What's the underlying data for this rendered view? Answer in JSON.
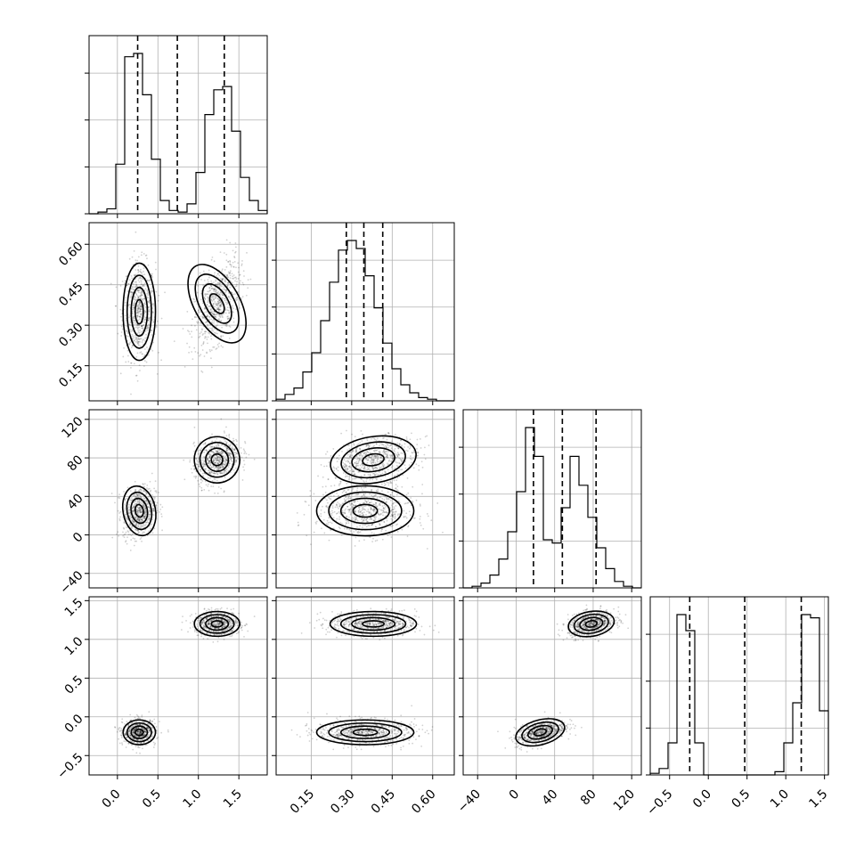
{
  "chart_data": {
    "type": "corner",
    "grid": true,
    "parameters": [
      {
        "range": [
          -0.35,
          1.85
        ],
        "ticks": [
          "0.0",
          "0.5",
          "1.0",
          "1.5"
        ],
        "tick_values": [
          0.0,
          0.5,
          1.0,
          1.5
        ],
        "quantiles": [
          0.25,
          0.74,
          1.32
        ]
      },
      {
        "range": [
          0.02,
          0.68
        ],
        "ticks": [
          "0.15",
          "0.30",
          "0.45",
          "0.60"
        ],
        "tick_values": [
          0.15,
          0.3,
          0.45,
          0.6
        ],
        "quantiles": [
          0.28,
          0.345,
          0.415
        ]
      },
      {
        "range": [
          -55,
          130
        ],
        "ticks": [
          "−40",
          "0",
          "40",
          "80",
          "120"
        ],
        "tick_values": [
          -40,
          0,
          40,
          80,
          120
        ],
        "quantiles": [
          18,
          48,
          83
        ]
      },
      {
        "range": [
          -0.75,
          1.55
        ],
        "ticks": [
          "−0.5",
          "0.0",
          "0.5",
          "1.0",
          "1.5"
        ],
        "tick_values": [
          -0.5,
          0.0,
          0.5,
          1.0,
          1.5
        ],
        "quantiles": [
          -0.24,
          0.47,
          1.2
        ]
      }
    ],
    "histograms": [
      {
        "edges_start": -0.35,
        "bin_width": 0.11,
        "values": [
          0,
          1,
          3,
          30,
          95,
          97,
          72,
          33,
          8,
          2,
          1,
          6,
          25,
          60,
          75,
          77,
          50,
          22,
          8,
          2
        ]
      },
      {
        "edges_start": 0.02,
        "bin_width": 0.033,
        "values": [
          1,
          4,
          8,
          18,
          30,
          50,
          74,
          94,
          100,
          95,
          78,
          58,
          36,
          20,
          10,
          5,
          2,
          1,
          0,
          0
        ]
      },
      {
        "edges_start": -55,
        "bin_width": 9.25,
        "values": [
          0,
          1,
          3,
          8,
          18,
          35,
          60,
          100,
          82,
          30,
          28,
          50,
          82,
          64,
          44,
          25,
          12,
          4,
          1,
          0
        ]
      },
      {
        "edges_start": -0.75,
        "bin_width": 0.115,
        "values": [
          1,
          4,
          20,
          100,
          90,
          20,
          0,
          0,
          0,
          0,
          0,
          0,
          0,
          0,
          2,
          20,
          45,
          100,
          98,
          40
        ]
      }
    ],
    "clusters": [
      {
        "p0": 0.27,
        "p1": 0.35,
        "p2": 25,
        "p3": -0.2
      },
      {
        "p0": 1.23,
        "p1": 0.38,
        "p2": 78,
        "p3": 1.2
      }
    ],
    "cluster_spread": [
      {
        "p0": 0.1,
        "p1": 0.09,
        "p2": 13,
        "p3": 0.08
      },
      {
        "p0": 0.14,
        "p1": 0.08,
        "p2": 12,
        "p3": 0.08
      }
    ],
    "cluster_tilt": {
      "1_0": [
        0,
        0.5
      ],
      "2_0": [
        0.2,
        0.3
      ],
      "2_1": [
        0,
        0.3
      ],
      "3_0": [
        0,
        0
      ],
      "3_1": [
        0,
        0
      ],
      "3_2": [
        0.5,
        0.3
      ]
    }
  }
}
